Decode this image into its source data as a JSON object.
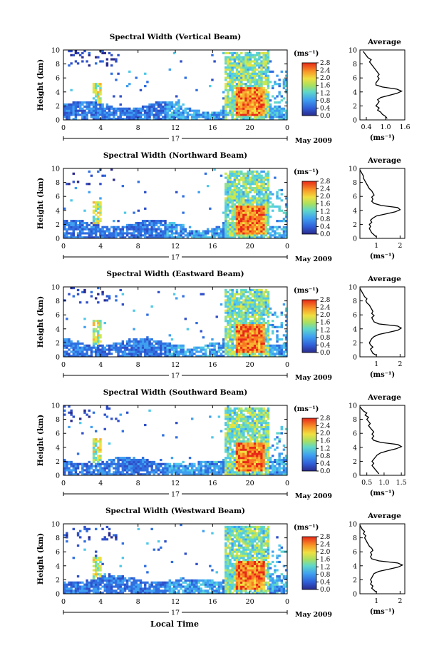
{
  "chart_data": {
    "type": "heatmap",
    "shared": {
      "ylabel": "Height (km)",
      "xlabel": "Local Time",
      "x_ticks": [
        "0",
        "4",
        "8",
        "12",
        "16",
        "20",
        "0"
      ],
      "y_ticks": [
        "0",
        "2",
        "4",
        "6",
        "8",
        "10"
      ],
      "date_day": "17",
      "date_month": "May 2009",
      "colorbar_unit": "(ms⁻¹)",
      "colorbar_ticks": [
        "0.0",
        "0.4",
        "0.8",
        "1.2",
        "1.6",
        "2.0",
        "2.4",
        "2.8"
      ],
      "colorbar_range": [
        0,
        2.8
      ],
      "profile_title": "Average",
      "profile_unit": "(ms⁻¹)",
      "xlim_hours": [
        0,
        24
      ],
      "ylim_km": [
        0,
        10
      ]
    },
    "panels": [
      {
        "title": "Spectral Width (Vertical Beam)",
        "profile_ticks": [
          "0.4",
          "1.0",
          "1.6"
        ],
        "profile_xlim": [
          0.2,
          1.6
        ],
        "profile": [
          [
            1.05,
            0.2
          ],
          [
            1.0,
            0.5
          ],
          [
            0.9,
            0.8
          ],
          [
            0.85,
            1.1
          ],
          [
            0.75,
            1.4
          ],
          [
            0.8,
            1.7
          ],
          [
            0.7,
            2.0
          ],
          [
            0.75,
            2.3
          ],
          [
            0.8,
            2.6
          ],
          [
            0.75,
            2.9
          ],
          [
            0.85,
            3.2
          ],
          [
            1.1,
            3.5
          ],
          [
            1.35,
            3.8
          ],
          [
            1.5,
            4.1
          ],
          [
            1.35,
            4.4
          ],
          [
            0.9,
            4.7
          ],
          [
            0.7,
            5.0
          ],
          [
            0.7,
            5.3
          ],
          [
            0.75,
            5.6
          ],
          [
            0.8,
            5.9
          ],
          [
            0.75,
            6.2
          ],
          [
            0.8,
            6.5
          ],
          [
            0.75,
            6.8
          ],
          [
            0.7,
            7.1
          ],
          [
            0.65,
            7.4
          ],
          [
            0.6,
            7.7
          ],
          [
            0.55,
            8.0
          ],
          [
            0.5,
            8.3
          ],
          [
            0.55,
            8.6
          ],
          [
            0.45,
            8.9
          ],
          [
            0.4,
            9.2
          ],
          [
            0.35,
            9.5
          ],
          [
            0.3,
            9.8
          ]
        ]
      },
      {
        "title": "Spectral Width (Northward Beam)",
        "profile_ticks": [
          "1",
          "2"
        ],
        "profile_xlim": [
          0.3,
          2.2
        ],
        "profile": [
          [
            1.0,
            0.2
          ],
          [
            0.9,
            0.5
          ],
          [
            0.8,
            0.8
          ],
          [
            0.75,
            1.1
          ],
          [
            0.7,
            1.4
          ],
          [
            0.75,
            1.7
          ],
          [
            0.7,
            2.0
          ],
          [
            0.8,
            2.3
          ],
          [
            0.75,
            2.6
          ],
          [
            0.85,
            2.9
          ],
          [
            1.0,
            3.2
          ],
          [
            1.4,
            3.5
          ],
          [
            1.8,
            3.8
          ],
          [
            2.0,
            4.1
          ],
          [
            1.9,
            4.4
          ],
          [
            1.2,
            4.7
          ],
          [
            0.9,
            5.0
          ],
          [
            0.8,
            5.3
          ],
          [
            0.85,
            5.6
          ],
          [
            0.8,
            5.9
          ],
          [
            0.9,
            6.2
          ],
          [
            0.85,
            6.5
          ],
          [
            0.8,
            6.8
          ],
          [
            0.7,
            7.1
          ],
          [
            0.65,
            7.4
          ],
          [
            0.6,
            7.7
          ],
          [
            0.55,
            8.0
          ],
          [
            0.5,
            8.3
          ],
          [
            0.45,
            8.6
          ],
          [
            0.45,
            8.9
          ],
          [
            0.4,
            9.2
          ],
          [
            0.35,
            9.5
          ],
          [
            0.3,
            9.8
          ]
        ]
      },
      {
        "title": "Spectral Width (Eastward Beam)",
        "profile_ticks": [
          "1",
          "2"
        ],
        "profile_xlim": [
          0.3,
          2.2
        ],
        "profile": [
          [
            1.0,
            0.2
          ],
          [
            0.85,
            0.5
          ],
          [
            0.8,
            0.8
          ],
          [
            0.75,
            1.1
          ],
          [
            0.85,
            1.4
          ],
          [
            0.75,
            1.7
          ],
          [
            0.7,
            2.0
          ],
          [
            0.75,
            2.3
          ],
          [
            0.8,
            2.6
          ],
          [
            0.9,
            2.9
          ],
          [
            1.1,
            3.2
          ],
          [
            1.5,
            3.5
          ],
          [
            1.9,
            3.8
          ],
          [
            2.05,
            4.1
          ],
          [
            1.9,
            4.4
          ],
          [
            1.1,
            4.7
          ],
          [
            0.9,
            5.0
          ],
          [
            0.85,
            5.3
          ],
          [
            0.8,
            5.6
          ],
          [
            0.9,
            5.9
          ],
          [
            0.8,
            6.2
          ],
          [
            0.85,
            6.5
          ],
          [
            0.8,
            6.8
          ],
          [
            0.75,
            7.1
          ],
          [
            0.7,
            7.4
          ],
          [
            0.6,
            7.7
          ],
          [
            0.55,
            8.0
          ],
          [
            0.6,
            8.3
          ],
          [
            0.5,
            8.6
          ],
          [
            0.45,
            8.9
          ],
          [
            0.4,
            9.2
          ],
          [
            0.35,
            9.5
          ],
          [
            0.3,
            9.8
          ]
        ]
      },
      {
        "title": "Spectral Width (Southward Beam)",
        "profile_ticks": [
          "0.5",
          "1.0",
          "1.5"
        ],
        "profile_xlim": [
          0.3,
          1.6
        ],
        "profile": [
          [
            0.85,
            0.2
          ],
          [
            0.8,
            0.5
          ],
          [
            0.75,
            0.8
          ],
          [
            0.7,
            1.1
          ],
          [
            0.65,
            1.4
          ],
          [
            0.7,
            1.7
          ],
          [
            0.65,
            2.0
          ],
          [
            0.7,
            2.3
          ],
          [
            0.75,
            2.6
          ],
          [
            0.8,
            2.9
          ],
          [
            0.9,
            3.2
          ],
          [
            1.1,
            3.5
          ],
          [
            1.35,
            3.8
          ],
          [
            1.5,
            4.1
          ],
          [
            1.4,
            4.4
          ],
          [
            0.9,
            4.7
          ],
          [
            0.7,
            5.0
          ],
          [
            0.65,
            5.3
          ],
          [
            0.7,
            5.6
          ],
          [
            0.65,
            5.9
          ],
          [
            0.7,
            6.2
          ],
          [
            0.65,
            6.5
          ],
          [
            0.6,
            6.8
          ],
          [
            0.55,
            7.1
          ],
          [
            0.6,
            7.4
          ],
          [
            0.55,
            7.7
          ],
          [
            0.5,
            8.0
          ],
          [
            0.55,
            8.3
          ],
          [
            0.45,
            8.6
          ],
          [
            0.5,
            8.9
          ],
          [
            0.4,
            9.2
          ],
          [
            0.35,
            9.5
          ],
          [
            0.3,
            9.8
          ]
        ]
      },
      {
        "title": "Spectral Width (Westward Beam)",
        "profile_ticks": [
          "1",
          "2"
        ],
        "profile_xlim": [
          0.3,
          2.2
        ],
        "profile": [
          [
            1.0,
            0.2
          ],
          [
            0.9,
            0.5
          ],
          [
            0.8,
            0.8
          ],
          [
            0.85,
            1.1
          ],
          [
            0.75,
            1.4
          ],
          [
            0.8,
            1.7
          ],
          [
            0.75,
            2.0
          ],
          [
            0.8,
            2.3
          ],
          [
            0.85,
            2.6
          ],
          [
            0.9,
            2.9
          ],
          [
            1.1,
            3.2
          ],
          [
            1.5,
            3.5
          ],
          [
            1.9,
            3.8
          ],
          [
            2.1,
            4.1
          ],
          [
            1.9,
            4.4
          ],
          [
            1.1,
            4.7
          ],
          [
            0.8,
            5.0
          ],
          [
            0.75,
            5.3
          ],
          [
            0.8,
            5.6
          ],
          [
            0.75,
            5.9
          ],
          [
            0.85,
            6.2
          ],
          [
            0.8,
            6.5
          ],
          [
            0.7,
            6.8
          ],
          [
            0.65,
            7.1
          ],
          [
            0.6,
            7.4
          ],
          [
            0.55,
            7.7
          ],
          [
            0.5,
            8.0
          ],
          [
            0.55,
            8.3
          ],
          [
            0.45,
            8.6
          ],
          [
            0.5,
            8.9
          ],
          [
            0.4,
            9.2
          ],
          [
            0.35,
            9.5
          ],
          [
            0.3,
            9.8
          ]
        ]
      }
    ]
  }
}
